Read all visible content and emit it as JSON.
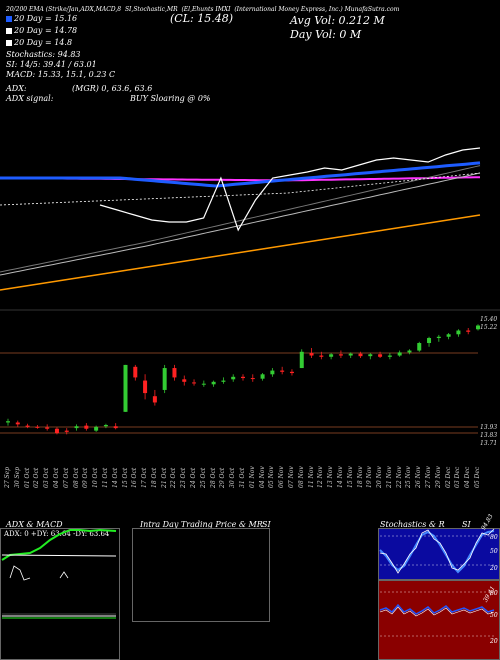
{
  "header": {
    "topline": "MunafaSutra.com",
    "t1": "20/200 EMA (Strike/Jan,ADX,MACD,8",
    "t2": "SI,Stochastic,MR",
    "t3": "(CL: 15.48)",
    "t4": "(El,Ehunts IMXI",
    "t5": "(Int",
    "t6": "ernational Money Express, Inc.) MunafaSutra.com",
    "avg_vol": "Avg Vol: 0.212  M",
    "day_vol": "Day Vol: 0   M",
    "ema20": "20  Day = 15.16",
    "ema30": "20  Day = 14.78",
    "ema50": "20  Day = 14.8",
    "stoch": "Stochastics: 94.83",
    "si": "SI: 14/5: 39.41 / 63.01",
    "macd": "MACD: 15.33,  15.1,  0.23 C",
    "adx": "ADX:",
    "adx_val": "(MGR) 0,  63.6,  63.6",
    "adx_signal": "ADX  signal:",
    "buy": "BUY Sloaring @ 0%",
    "colors": {
      "blue": "#1e5cff",
      "magenta": "#ff33ff",
      "orange": "#ff9900",
      "green": "#33cc33",
      "red": "#ff2222"
    }
  },
  "price_labels": [
    "15.40",
    "15.22",
    "13.93",
    "13.83",
    "13.71"
  ],
  "dates": [
    "27 Sep",
    "30 Sep",
    "01 Oct",
    "02 Oct",
    "03 Oct",
    "04 Oct",
    "07 Oct",
    "08 Oct",
    "09 Oct",
    "10 Oct",
    "11 Oct",
    "14 Oct",
    "15 Oct",
    "16 Oct",
    "17 Oct",
    "18 Oct",
    "21 Oct",
    "22 Oct",
    "23 Oct",
    "24 Oct",
    "25 Oct",
    "28 Oct",
    "29 Oct",
    "30 Oct",
    "31 Oct",
    "01 Nov",
    "04 Nov",
    "05 Nov",
    "06 Nov",
    "07 Nov",
    "08 Nov",
    "11 Nov",
    "12 Nov",
    "13 Nov",
    "14 Nov",
    "15 Nov",
    "18 Nov",
    "19 Nov",
    "20 Nov",
    "21 Nov",
    "22 Nov",
    "25 Nov",
    "26 Nov",
    "27 Nov",
    "29 Nov",
    "02 Dec",
    "03 Dec",
    "04 Dec",
    "05 Dec"
  ],
  "panels": {
    "adx_title": "ADX  & MACD",
    "adx_values": "ADX: 0   +DY: 63.64   -DY: 63.64",
    "intra_title": "Intra  Day Trading Price  & MR",
    "intra_si": "SI",
    "stoch_title": "Stochastics  & R",
    "stoch_si": "SI",
    "stoch_ticks": [
      "80",
      "50",
      "20"
    ],
    "si_ticks": [
      "80",
      "50",
      "20"
    ],
    "stoch_tag": "94.83",
    "si_tag": "39.41"
  },
  "chart_data": {
    "type": "candlestick",
    "title": "IMXI",
    "candles": [
      [
        13.93,
        13.99,
        13.88,
        13.95
      ],
      [
        13.93,
        13.96,
        13.86,
        13.9
      ],
      [
        13.88,
        13.91,
        13.84,
        13.86
      ],
      [
        13.86,
        13.89,
        13.83,
        13.85
      ],
      [
        13.85,
        13.9,
        13.8,
        13.83
      ],
      [
        13.83,
        13.85,
        13.74,
        13.76
      ],
      [
        13.8,
        13.84,
        13.74,
        13.78
      ],
      [
        13.84,
        13.9,
        13.8,
        13.87
      ],
      [
        13.88,
        13.92,
        13.8,
        13.83
      ],
      [
        13.8,
        13.88,
        13.78,
        13.86
      ],
      [
        13.87,
        13.91,
        13.84,
        13.89
      ],
      [
        13.87,
        13.92,
        13.82,
        13.84
      ],
      [
        14.1,
        14.85,
        14.1,
        14.85
      ],
      [
        14.82,
        14.85,
        14.6,
        14.65
      ],
      [
        14.6,
        14.7,
        14.3,
        14.4
      ],
      [
        14.35,
        14.45,
        14.2,
        14.25
      ],
      [
        14.45,
        14.85,
        14.4,
        14.8
      ],
      [
        14.8,
        14.85,
        14.6,
        14.65
      ],
      [
        14.62,
        14.68,
        14.52,
        14.58
      ],
      [
        14.57,
        14.62,
        14.52,
        14.56
      ],
      [
        14.55,
        14.6,
        14.5,
        14.55
      ],
      [
        14.54,
        14.6,
        14.5,
        14.58
      ],
      [
        14.58,
        14.65,
        14.55,
        14.6
      ],
      [
        14.62,
        14.7,
        14.58,
        14.66
      ],
      [
        14.66,
        14.7,
        14.6,
        14.64
      ],
      [
        14.64,
        14.7,
        14.58,
        14.63
      ],
      [
        14.63,
        14.72,
        14.6,
        14.7
      ],
      [
        14.7,
        14.8,
        14.66,
        14.76
      ],
      [
        14.76,
        14.82,
        14.7,
        14.74
      ],
      [
        14.74,
        14.78,
        14.68,
        14.72
      ],
      [
        14.8,
        15.1,
        14.8,
        15.06
      ],
      [
        15.04,
        15.12,
        14.96,
        15.0
      ],
      [
        15.0,
        15.06,
        14.94,
        14.98
      ],
      [
        14.98,
        15.04,
        14.94,
        15.02
      ],
      [
        15.02,
        15.08,
        14.96,
        15.0
      ],
      [
        15.0,
        15.05,
        14.96,
        15.03
      ],
      [
        15.03,
        15.06,
        14.96,
        14.99
      ],
      [
        14.99,
        15.04,
        14.94,
        15.02
      ],
      [
        15.02,
        15.06,
        14.96,
        14.98
      ],
      [
        14.98,
        15.04,
        14.94,
        15.0
      ],
      [
        15.0,
        15.08,
        14.98,
        15.05
      ],
      [
        15.05,
        15.1,
        15.02,
        15.08
      ],
      [
        15.08,
        15.22,
        15.06,
        15.2
      ],
      [
        15.2,
        15.3,
        15.14,
        15.28
      ],
      [
        15.28,
        15.33,
        15.22,
        15.3
      ],
      [
        15.3,
        15.36,
        15.26,
        15.34
      ],
      [
        15.34,
        15.42,
        15.3,
        15.4
      ],
      [
        15.4,
        15.44,
        15.34,
        15.38
      ],
      [
        15.42,
        15.5,
        15.4,
        15.48
      ]
    ],
    "ylim": [
      13.65,
      15.6
    ]
  }
}
